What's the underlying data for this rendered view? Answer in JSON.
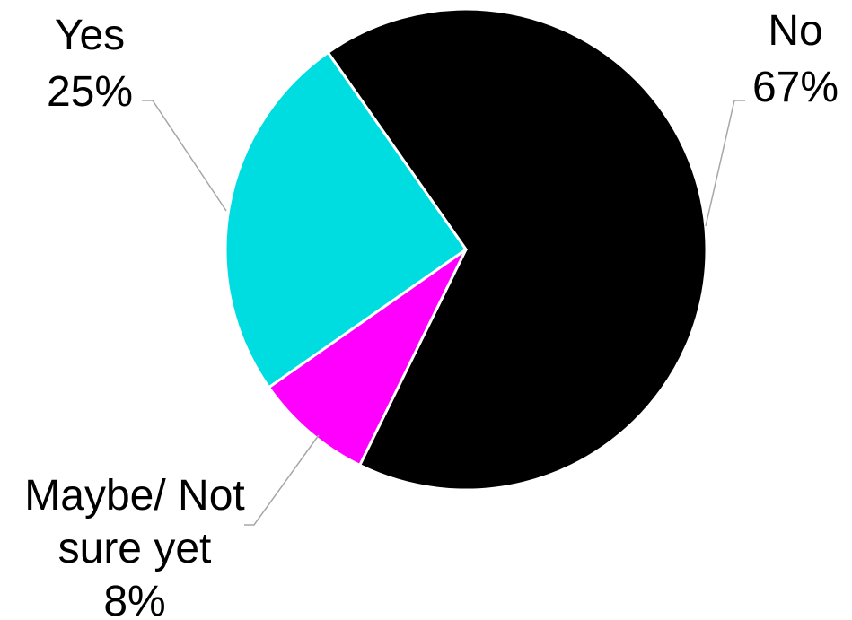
{
  "chart_data": {
    "type": "pie",
    "slices": [
      {
        "label": "No",
        "value": 67,
        "value_label": "67%",
        "color": "#000000"
      },
      {
        "label": "Maybe/ Not sure yet",
        "label_lines": [
          "Maybe/ Not",
          "sure yet"
        ],
        "value": 8,
        "value_label": "8%",
        "color": "#ff00ff"
      },
      {
        "label": "Yes",
        "value": 25,
        "value_label": "25%",
        "color": "#00dde0"
      }
    ],
    "start_position": "top, clockwise",
    "legend": "none",
    "data_labels": "outside with leader lines"
  }
}
